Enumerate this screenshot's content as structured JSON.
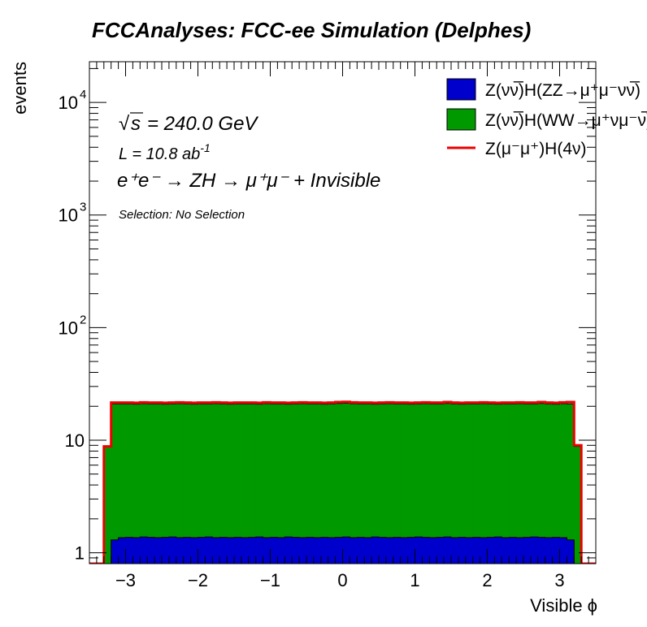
{
  "chart_data": {
    "type": "area",
    "title": "FCCAnalyses: FCC-ee Simulation (Delphes)",
    "xlabel": "Visible ϕ",
    "ylabel": "events",
    "xlim": [
      -3.5,
      3.5
    ],
    "ylim": [
      0.8,
      23000
    ],
    "yscale": "log",
    "x_ticks": [
      "−3",
      "−2",
      "−1",
      "0",
      "1",
      "2",
      "3"
    ],
    "y_ticks": [
      {
        "value": 1,
        "base": "1",
        "exp": ""
      },
      {
        "value": 10,
        "base": "10",
        "exp": ""
      },
      {
        "value": 100,
        "base": "10",
        "exp": "2"
      },
      {
        "value": 1000,
        "base": "10",
        "exp": "3"
      },
      {
        "value": 10000,
        "base": "10",
        "exp": "4"
      }
    ],
    "bin_edges": [
      -3.5,
      -3.3,
      -3.2,
      -3.1,
      -3.0,
      -2.9,
      -2.8,
      -2.7,
      -2.6,
      -2.5,
      -2.4,
      -2.3,
      -2.2,
      -2.1,
      -2.0,
      -1.9,
      -1.8,
      -1.7,
      -1.6,
      -1.5,
      -1.4,
      -1.3,
      -1.2,
      -1.1,
      -1.0,
      -0.9,
      -0.8,
      -0.7,
      -0.6,
      -0.5,
      -0.4,
      -0.3,
      -0.2,
      -0.1,
      0.0,
      0.1,
      0.2,
      0.3,
      0.4,
      0.5,
      0.6,
      0.7,
      0.8,
      0.9,
      1.0,
      1.1,
      1.2,
      1.3,
      1.4,
      1.5,
      1.6,
      1.7,
      1.8,
      1.9,
      2.0,
      2.1,
      2.2,
      2.3,
      2.4,
      2.5,
      2.6,
      2.7,
      2.8,
      2.9,
      3.0,
      3.1,
      3.2,
      3.3,
      3.5
    ],
    "series": [
      {
        "name": "Z(νν̅)H(ZZ→μ⁺μ⁻νν̅)",
        "style": "fill",
        "color": "#0000cc",
        "values": [
          0,
          0,
          1.3,
          1.36,
          1.37,
          1.36,
          1.38,
          1.37,
          1.36,
          1.37,
          1.38,
          1.36,
          1.37,
          1.36,
          1.37,
          1.38,
          1.36,
          1.37,
          1.36,
          1.37,
          1.36,
          1.37,
          1.38,
          1.36,
          1.37,
          1.36,
          1.38,
          1.37,
          1.36,
          1.37,
          1.36,
          1.37,
          1.36,
          1.37,
          1.38,
          1.36,
          1.37,
          1.36,
          1.38,
          1.37,
          1.36,
          1.37,
          1.36,
          1.37,
          1.38,
          1.37,
          1.36,
          1.37,
          1.38,
          1.36,
          1.37,
          1.36,
          1.37,
          1.36,
          1.37,
          1.38,
          1.36,
          1.37,
          1.36,
          1.37,
          1.38,
          1.37,
          1.36,
          1.37,
          1.36,
          1.3,
          0,
          0
        ]
      },
      {
        "name": "Z(νν̅)H(WW→μ⁺νμ⁻ν̅)",
        "style": "fill",
        "color": "#009900",
        "values": [
          0,
          8.7,
          21.0,
          21.0,
          21.0,
          20.9,
          21.1,
          21.0,
          21.0,
          20.9,
          21.0,
          21.1,
          21.0,
          20.9,
          21.0,
          21.0,
          21.1,
          21.0,
          20.9,
          21.0,
          21.0,
          21.0,
          20.9,
          21.1,
          21.0,
          21.0,
          20.9,
          21.0,
          21.1,
          21.0,
          21.0,
          20.9,
          21.0,
          21.2,
          21.3,
          21.1,
          21.0,
          21.0,
          20.9,
          21.0,
          21.1,
          21.0,
          21.0,
          20.9,
          21.0,
          21.1,
          21.0,
          21.0,
          21.2,
          21.0,
          20.9,
          21.0,
          21.0,
          21.1,
          21.0,
          20.9,
          21.0,
          21.0,
          21.1,
          21.0,
          21.0,
          21.2,
          21.0,
          20.9,
          21.1,
          21.0,
          8.8,
          0
        ]
      },
      {
        "name": "Z(μ⁻μ⁺)H(4ν)",
        "style": "line",
        "color": "#ee0000",
        "values": [
          0,
          8.8,
          21.6,
          21.6,
          21.6,
          21.5,
          21.7,
          21.6,
          21.6,
          21.5,
          21.6,
          21.7,
          21.6,
          21.5,
          21.6,
          21.6,
          21.7,
          21.6,
          21.5,
          21.6,
          21.6,
          21.6,
          21.5,
          21.7,
          21.6,
          21.6,
          21.5,
          21.6,
          21.7,
          21.6,
          21.6,
          21.5,
          21.6,
          21.8,
          21.9,
          21.7,
          21.6,
          21.6,
          21.5,
          21.6,
          21.7,
          21.6,
          21.6,
          21.5,
          21.6,
          21.7,
          21.6,
          21.6,
          21.8,
          21.6,
          21.5,
          21.6,
          21.6,
          21.7,
          21.6,
          21.5,
          21.6,
          21.6,
          21.7,
          21.6,
          21.6,
          21.8,
          21.6,
          21.5,
          21.7,
          21.8,
          9.0,
          0
        ]
      }
    ],
    "legend": {
      "position": "top-right"
    },
    "annotations": {
      "sqrt_s": "= 240.0 GeV",
      "lumi": "L = 10.8 ab",
      "lumi_exp": "-1",
      "process": "e⁺e⁻ → ZH → μ⁺μ⁻ + Invisible",
      "selection": "Selection: No Selection"
    }
  }
}
